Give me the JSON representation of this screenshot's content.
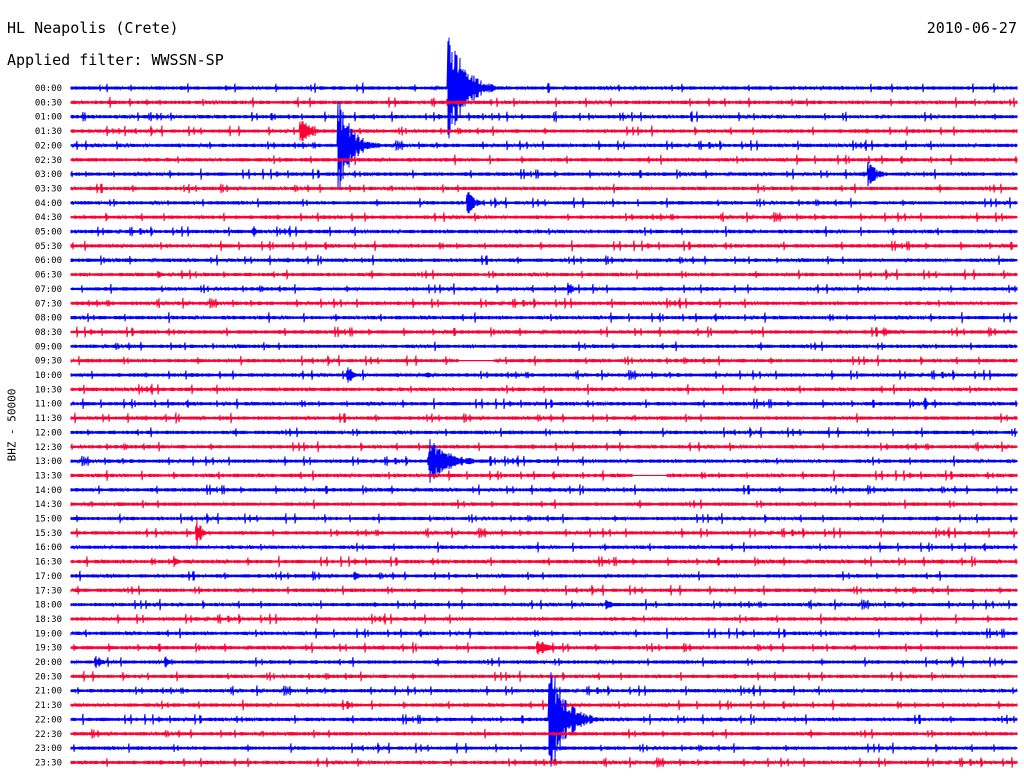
{
  "header": {
    "station": "HL Neapolis (Crete)",
    "date": "2010-06-27",
    "filter": "Applied filter: WWSSN-SP"
  },
  "colors": {
    "blue": "#0000ff",
    "red": "#ff0033"
  },
  "chart_data": {
    "type": "line",
    "title": "HL Neapolis (Crete)",
    "ylabel": "BHZ - 50000",
    "row_labels": [
      "00:00",
      "00:30",
      "01:00",
      "01:30",
      "02:00",
      "02:30",
      "03:00",
      "03:30",
      "04:00",
      "04:30",
      "05:00",
      "05:30",
      "06:00",
      "06:30",
      "07:00",
      "07:30",
      "08:00",
      "08:30",
      "09:00",
      "09:30",
      "10:00",
      "10:30",
      "11:00",
      "11:30",
      "12:00",
      "12:30",
      "13:00",
      "13:30",
      "14:00",
      "14:30",
      "15:00",
      "15:30",
      "16:00",
      "16:30",
      "17:00",
      "17:30",
      "18:00",
      "18:30",
      "19:00",
      "19:30",
      "20:00",
      "20:30",
      "21:00",
      "21:30",
      "22:00",
      "22:30",
      "23:00",
      "23:30"
    ],
    "row_minutes": 30,
    "events": [
      {
        "row": 0,
        "minute": 12.0,
        "amp": 65,
        "dur": 1.5
      },
      {
        "row": 3,
        "minute": 7.3,
        "amp": 16,
        "dur": 0.8
      },
      {
        "row": 4,
        "minute": 8.5,
        "amp": 48,
        "dur": 1.3
      },
      {
        "row": 6,
        "minute": 25.3,
        "amp": 14,
        "dur": 0.9
      },
      {
        "row": 8,
        "minute": 12.6,
        "amp": 12,
        "dur": 0.7
      },
      {
        "row": 10,
        "minute": 5.8,
        "amp": 6,
        "dur": 0.4
      },
      {
        "row": 13,
        "minute": 2.8,
        "amp": 5,
        "dur": 0.3
      },
      {
        "row": 14,
        "minute": 15.8,
        "amp": 8,
        "dur": 0.4
      },
      {
        "row": 17,
        "minute": 25.8,
        "amp": 6,
        "dur": 0.4
      },
      {
        "row": 20,
        "minute": 8.8,
        "amp": 11,
        "dur": 0.4
      },
      {
        "row": 20,
        "minute": 11.3,
        "amp": 5,
        "dur": 0.3
      },
      {
        "row": 22,
        "minute": 27.1,
        "amp": 7,
        "dur": 0.2
      },
      {
        "row": 26,
        "minute": 11.4,
        "amp": 22,
        "dur": 2.0
      },
      {
        "row": 31,
        "minute": 4.0,
        "amp": 18,
        "dur": 0.4
      },
      {
        "row": 33,
        "minute": 3.3,
        "amp": 7,
        "dur": 0.3
      },
      {
        "row": 34,
        "minute": 9.0,
        "amp": 6,
        "dur": 0.4
      },
      {
        "row": 36,
        "minute": 17.0,
        "amp": 7,
        "dur": 0.5
      },
      {
        "row": 39,
        "minute": 14.8,
        "amp": 10,
        "dur": 1.0
      },
      {
        "row": 40,
        "minute": 0.8,
        "amp": 8,
        "dur": 0.5
      },
      {
        "row": 40,
        "minute": 3.0,
        "amp": 6,
        "dur": 0.5
      },
      {
        "row": 43,
        "minute": 8.8,
        "amp": 5,
        "dur": 0.3
      },
      {
        "row": 44,
        "minute": 15.2,
        "amp": 60,
        "dur": 1.5
      }
    ],
    "gaps": [
      {
        "row": 19,
        "start_minute": 12.3,
        "end_minute": 13.4
      },
      {
        "row": 27,
        "start_minute": 17.8,
        "end_minute": 18.9
      }
    ]
  }
}
